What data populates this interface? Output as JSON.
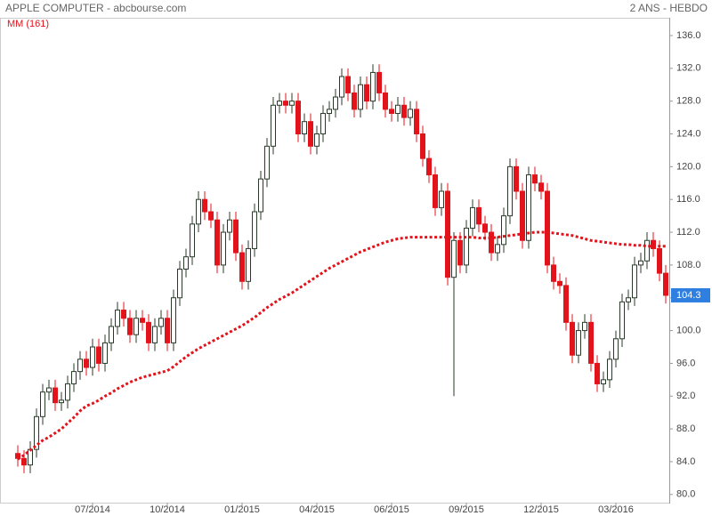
{
  "chart_data": {
    "type": "candlestick",
    "title": "APPLE COMPUTER - abcbourse.com",
    "subtitle": "2 ANS - HEBDO",
    "categories": [
      null,
      null,
      null,
      null,
      null,
      null,
      null,
      null,
      null,
      null,
      null,
      null,
      "07/2014",
      null,
      null,
      null,
      null,
      null,
      null,
      null,
      null,
      null,
      null,
      null,
      "10/2014",
      null,
      null,
      null,
      null,
      null,
      null,
      null,
      null,
      null,
      null,
      null,
      "01/2015",
      null,
      null,
      null,
      null,
      null,
      null,
      null,
      null,
      null,
      null,
      null,
      "04/2015",
      null,
      null,
      null,
      null,
      null,
      null,
      null,
      null,
      null,
      null,
      null,
      "06/2015",
      null,
      null,
      null,
      null,
      null,
      null,
      null,
      null,
      null,
      null,
      null,
      "09/2015",
      null,
      null,
      null,
      null,
      null,
      null,
      null,
      null,
      null,
      null,
      null,
      "12/2015",
      null,
      null,
      null,
      null,
      null,
      null,
      null,
      null,
      null,
      null,
      null,
      "03/2016",
      null,
      null,
      null,
      null,
      null,
      null,
      null,
      null
    ],
    "open": [
      85,
      84.4,
      83.6,
      85.5,
      89.5,
      92.5,
      93,
      91.2,
      91.5,
      93.5,
      95,
      96.5,
      95.5,
      98,
      96,
      98.5,
      100.5,
      102.5,
      101.5,
      99.5,
      101.5,
      101,
      98.5,
      100.5,
      101.5,
      98.5,
      104,
      107.5,
      109,
      113,
      116,
      114.5,
      113.5,
      108,
      112,
      113.5,
      109.5,
      106,
      110,
      114.5,
      118.5,
      122.5,
      127.5,
      128,
      127.5,
      128,
      124,
      125.5,
      122.5,
      124,
      126.5,
      127,
      128.5,
      131,
      129,
      127,
      130,
      128,
      131.5,
      129,
      127,
      126.5,
      127.5,
      126,
      127,
      124,
      121,
      119,
      115,
      117,
      106.5,
      111,
      108,
      112.5,
      115,
      113,
      112,
      109.5,
      110.5,
      114,
      120,
      117,
      111,
      119,
      118,
      117,
      108,
      106,
      105.5,
      101,
      97,
      100,
      101,
      96,
      93.5,
      94,
      96.5,
      99,
      103.5,
      104,
      108,
      108.5,
      111,
      110,
      107
    ],
    "high": [
      86,
      85.4,
      86.5,
      90.5,
      93.5,
      94,
      94,
      92.5,
      94.5,
      96,
      97.5,
      97.5,
      99,
      99,
      99.5,
      101.5,
      103.5,
      103.5,
      102.5,
      102.5,
      102.5,
      102,
      101.5,
      102.5,
      102.5,
      105,
      108.5,
      110,
      114,
      117,
      117,
      115.5,
      114.5,
      113,
      114.5,
      114.5,
      110.5,
      111,
      115.5,
      119.5,
      123.5,
      128.5,
      129,
      129,
      129,
      129,
      126.5,
      126.5,
      125,
      127.5,
      128,
      129.5,
      132,
      132,
      130,
      131,
      131,
      132.5,
      132.5,
      130,
      128,
      128.5,
      128.5,
      128,
      128,
      125,
      122,
      120,
      118,
      118,
      112,
      112,
      113.5,
      116,
      116,
      114,
      113,
      111.5,
      115,
      121,
      121,
      118,
      120,
      120,
      119,
      118,
      109,
      107,
      106.5,
      102,
      101,
      102,
      102,
      97,
      95,
      97.5,
      100,
      104.5,
      105,
      109,
      109.5,
      112,
      112,
      111,
      108
    ],
    "low": [
      83.4,
      82.6,
      82.6,
      84.5,
      88.5,
      91.5,
      90.2,
      90.2,
      90.5,
      92.5,
      94,
      94.5,
      94.5,
      95,
      95,
      97.5,
      99.5,
      100.5,
      98.5,
      98.5,
      100,
      97.5,
      97.5,
      99.5,
      97.5,
      97.5,
      103,
      106.5,
      108,
      112,
      113.5,
      112.5,
      107,
      107,
      111,
      108.5,
      105,
      105,
      109,
      113.5,
      117.5,
      121.5,
      126.5,
      126.5,
      126.5,
      123,
      123,
      121.5,
      121.5,
      123,
      125.5,
      126,
      127.5,
      128,
      126,
      126,
      127,
      127,
      128,
      126,
      125.5,
      125.5,
      125,
      125,
      123,
      120,
      118,
      114,
      114,
      105.5,
      92,
      107,
      107,
      111.5,
      112,
      111,
      108.5,
      108.5,
      109.5,
      113,
      116,
      110,
      110,
      117,
      116,
      107,
      105,
      104.5,
      100,
      96,
      96,
      99,
      95,
      92.5,
      92.5,
      93,
      95.5,
      98,
      102.5,
      103,
      107,
      107.5,
      109,
      106,
      103.3
    ],
    "close": [
      84.4,
      83.6,
      85.5,
      89.5,
      92.5,
      93,
      91.2,
      91.5,
      93.5,
      95,
      96.5,
      95.5,
      98,
      96,
      98.5,
      100.5,
      102.5,
      101.5,
      99.5,
      101.5,
      101,
      98.5,
      100.5,
      101.5,
      98.5,
      104,
      107.5,
      109,
      113,
      116,
      114.5,
      113.5,
      108,
      112,
      113.5,
      109.5,
      106,
      110,
      114.5,
      118.5,
      122.5,
      127.5,
      128,
      127.5,
      128,
      124,
      125.5,
      122.5,
      124,
      126.5,
      127,
      128.5,
      131,
      129,
      127,
      130,
      128,
      131.5,
      129,
      127,
      126.5,
      127.5,
      126,
      127,
      124,
      121,
      119,
      115,
      117,
      106.5,
      111,
      108,
      112.5,
      115,
      113,
      112,
      109.5,
      110.5,
      114,
      120,
      117,
      111,
      119,
      118,
      117,
      108,
      106,
      105.5,
      101,
      97,
      100,
      101,
      96,
      93.5,
      94,
      96.5,
      99,
      103.5,
      104,
      108,
      108.5,
      111,
      110,
      107,
      104.3
    ],
    "moving_average": {
      "name": "MM (161)",
      "color": "#e3131b",
      "values": [
        84.3,
        84.8,
        85.4,
        86.0,
        86.6,
        87.0,
        87.5,
        88.0,
        88.7,
        89.4,
        90.2,
        90.8,
        91.1,
        91.5,
        92.0,
        92.4,
        92.9,
        93.3,
        93.7,
        94.0,
        94.3,
        94.5,
        94.7,
        94.9,
        95.1,
        95.6,
        96.2,
        96.8,
        97.3,
        97.8,
        98.2,
        98.6,
        99.0,
        99.4,
        99.8,
        100.2,
        100.6,
        101.1,
        101.6,
        102.2,
        102.8,
        103.3,
        103.8,
        104.2,
        104.6,
        105.1,
        105.6,
        106.1,
        106.6,
        107.1,
        107.6,
        108.0,
        108.4,
        108.8,
        109.2,
        109.6,
        109.9,
        110.2,
        110.5,
        110.8,
        111.0,
        111.2,
        111.3,
        111.4,
        111.4,
        111.4,
        111.4,
        111.4,
        111.4,
        111.4,
        111.4,
        111.4,
        111.4,
        111.4,
        111.3,
        111.3,
        111.3,
        111.4,
        111.5,
        111.6,
        111.7,
        111.8,
        111.9,
        112.0,
        112.0,
        112.0,
        111.9,
        111.8,
        111.7,
        111.6,
        111.4,
        111.2,
        111.0,
        110.9,
        110.8,
        110.7,
        110.6,
        110.5,
        110.5,
        110.4,
        110.4,
        110.3,
        110.3,
        110.3,
        110.3
      ]
    },
    "up_color": "#ffffff",
    "down_color": "#e3131b",
    "outline_color": "#2a3a2a",
    "last_price_color": "#2f7fe0",
    "ylim": [
      79,
      137.3
    ],
    "yticks": [
      {
        "value": 80,
        "label": "80.0"
      },
      {
        "value": 84,
        "label": "84.0"
      },
      {
        "value": 88,
        "label": "88.0"
      },
      {
        "value": 92,
        "label": "92.0"
      },
      {
        "value": 96,
        "label": "96.0"
      },
      {
        "value": 100,
        "label": "100.0"
      },
      {
        "value": 104,
        "label": "104.0"
      },
      {
        "value": 108,
        "label": "108.0"
      },
      {
        "value": 112,
        "label": "112.0"
      },
      {
        "value": 116,
        "label": "116.0"
      },
      {
        "value": 120,
        "label": "120.0"
      },
      {
        "value": 124,
        "label": "124.0"
      },
      {
        "value": 128,
        "label": "128.0"
      },
      {
        "value": 132,
        "label": "132.0"
      },
      {
        "value": 136,
        "label": "136.0"
      }
    ]
  }
}
